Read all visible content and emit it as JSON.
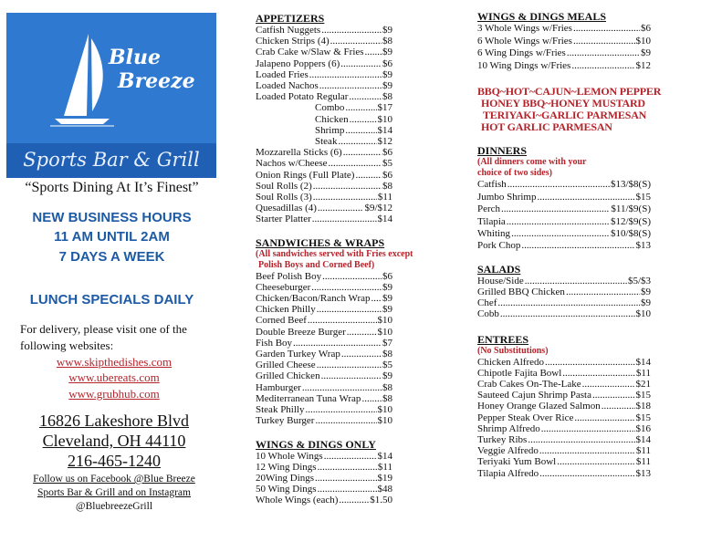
{
  "logo": {
    "brand_line1": "Blue",
    "brand_line2": "Breeze",
    "subtitle": "Sports Bar & Grill",
    "color": "#2f7ad0"
  },
  "tagline": "“Sports Dining At It’s Finest”",
  "hours": [
    "NEW BUSINESS HOURS",
    "11 AM UNTIL 2AM",
    "7 DAYS A WEEK"
  ],
  "lunch": "LUNCH SPECIALS DAILY",
  "delivery": {
    "line1": "For delivery, please visit one of the",
    "line2": "following websites:",
    "links": [
      "www.skipthedishes.com",
      "www.ubereats.com",
      "www.grubhub.com"
    ]
  },
  "address": [
    "16826 Lakeshore Blvd",
    "Cleveland, OH 44110",
    "216-465-1240"
  ],
  "follow": [
    "Follow us on Facebook @Blue Breeze",
    "Sports Bar & Grill and on Instagram",
    "@BluebreezeGrill"
  ],
  "sections": {
    "appetizers": {
      "title": "APPETIZERS",
      "items": [
        [
          "Catfish Nuggets",
          "$9"
        ],
        [
          "Chicken Strips (4)",
          "$8"
        ],
        [
          "Crab Cake w/Slaw & Fries",
          "$9"
        ],
        [
          "Jalapeno Poppers (6)",
          "$6"
        ],
        [
          "Loaded Fries",
          "$9"
        ],
        [
          "Loaded Nachos",
          "$9"
        ],
        [
          "Loaded Potato Regular",
          "$8"
        ],
        [
          "Combo",
          "$17",
          1
        ],
        [
          "Chicken",
          "$10",
          1
        ],
        [
          "Shrimp",
          "$14",
          1
        ],
        [
          "Steak",
          "$12",
          1
        ],
        [
          "Mozzarella Sticks (6)",
          "$6"
        ],
        [
          "Nachos w/Cheese",
          "$5"
        ],
        [
          "Onion Rings (Full Plate)",
          "$6"
        ],
        [
          "Soul Rolls (2)",
          "$8"
        ],
        [
          "Soul Rolls (3)",
          "$11"
        ],
        [
          "Quesadillas (4)",
          "$9/$12"
        ],
        [
          "Starter Platter",
          "$14"
        ]
      ]
    },
    "sandwiches": {
      "title": "SANDWICHES & WRAPS",
      "note": [
        "(All sandwiches served with Fries except",
        "Polish Boys and Corned Beef)"
      ],
      "items": [
        [
          "Beef Polish Boy",
          "$6"
        ],
        [
          "Cheeseburger",
          "$9"
        ],
        [
          "Chicken/Bacon/Ranch Wrap",
          "$9"
        ],
        [
          "Chicken Philly",
          "$9"
        ],
        [
          "Corned Beef",
          "$10"
        ],
        [
          "Double Breeze Burger",
          "$10"
        ],
        [
          "Fish Boy",
          "$7"
        ],
        [
          "Garden Turkey Wrap",
          "$8"
        ],
        [
          "Grilled Cheese",
          "$5"
        ],
        [
          "Grilled Chicken",
          "$9"
        ],
        [
          "Hamburger",
          "$8"
        ],
        [
          "Mediterranean Tuna Wrap",
          "$8"
        ],
        [
          "Steak Philly",
          "$10"
        ],
        [
          "Turkey Burger",
          "$10"
        ]
      ]
    },
    "wings_only": {
      "title": "WINGS & DINGS ONLY",
      "items": [
        [
          "10 Whole Wings",
          "$14"
        ],
        [
          "12 Wing Dings",
          "$11"
        ],
        [
          "20Wing Dings",
          "$19"
        ],
        [
          "50 Wing Dings",
          "$48"
        ],
        [
          "Whole Wings (each)",
          "$1.50"
        ]
      ]
    },
    "wings_meals": {
      "title": "WINGS & DINGS MEALS",
      "items": [
        [
          "3 Whole Wings w/Fries",
          "$6"
        ],
        [
          "6 Whole Wings w/Fries",
          "$10"
        ],
        [
          "6 Wing Dings w/Fries",
          "$9"
        ],
        [
          "10 Wing Dings w/Fries",
          "$12"
        ]
      ]
    },
    "sauces": [
      "BBQ~HOT~CAJUN~LEMON PEPPER",
      "HONEY BBQ~HONEY MUSTARD",
      "TERIYAKI~GARLIC PARMESAN",
      "HOT GARLIC PARMESAN"
    ],
    "dinners": {
      "title": "DINNERS",
      "note": [
        "(All dinners come with your",
        "choice of two sides)"
      ],
      "items": [
        [
          "Catfish",
          "$13/$8(S)"
        ],
        [
          "Jumbo Shrimp",
          "$15"
        ],
        [
          "Perch",
          "$11/$9(S)"
        ],
        [
          "Tilapia",
          "$12/$9(S)"
        ],
        [
          "Whiting",
          "$10/$8(S)"
        ],
        [
          "Pork Chop",
          "$13"
        ]
      ]
    },
    "salads": {
      "title": "SALADS",
      "items": [
        [
          "House/Side",
          "$5/$3"
        ],
        [
          "Grilled BBQ Chicken",
          "$9"
        ],
        [
          "Chef",
          "$9"
        ],
        [
          "Cobb",
          "$10"
        ]
      ]
    },
    "entrees": {
      "title": "ENTREES",
      "note": [
        "(No Substitutions)"
      ],
      "items": [
        [
          "Chicken Alfredo",
          "$14"
        ],
        [
          "Chipotle Fajita Bowl",
          "$11"
        ],
        [
          "Crab Cakes On-The-Lake",
          "$21"
        ],
        [
          "Sauteed Cajun Shrimp Pasta",
          "$15"
        ],
        [
          "Honey Orange Glazed Salmon",
          "$18"
        ],
        [
          "Pepper Steak Over Rice",
          "$15"
        ],
        [
          "Shrimp Alfredo",
          "$16"
        ],
        [
          "Turkey Ribs",
          "$14"
        ],
        [
          "Veggie Alfredo",
          "$11"
        ],
        [
          "Teriyaki Yum Bowl",
          "$11"
        ],
        [
          "Tilapia Alfredo",
          "$13"
        ]
      ]
    }
  }
}
